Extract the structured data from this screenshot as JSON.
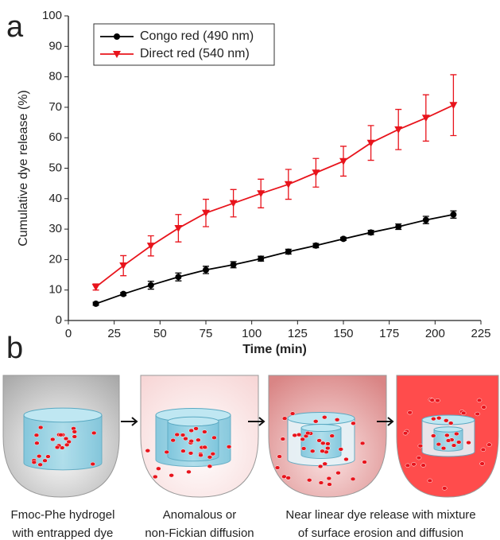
{
  "chart_data": {
    "type": "line",
    "xlabel": "Time (min)",
    "ylabel": "Cumulative dye release (%)",
    "x": [
      15,
      30,
      45,
      60,
      75,
      90,
      105,
      120,
      135,
      150,
      165,
      180,
      195,
      210
    ],
    "series": [
      {
        "name": "Congo red (490 nm)",
        "color": "#000000",
        "marker": "circle",
        "values": [
          5.5,
          8.7,
          11.6,
          14.3,
          16.6,
          18.3,
          20.3,
          22.6,
          24.6,
          26.8,
          28.9,
          30.8,
          33.0,
          34.8
        ],
        "errors": [
          0.5,
          0.5,
          1.3,
          1.3,
          1.2,
          1.0,
          0.8,
          0.8,
          0.7,
          0.5,
          0.7,
          0.9,
          1.2,
          1.2
        ]
      },
      {
        "name": "Direct red (540 nm)",
        "color": "#e8141c",
        "marker": "triangle-down",
        "values": [
          11.0,
          18.0,
          24.5,
          30.3,
          35.3,
          38.5,
          41.7,
          44.7,
          48.5,
          52.3,
          58.3,
          62.7,
          66.5,
          70.7
        ],
        "errors": [
          1.0,
          3.3,
          3.3,
          4.5,
          4.5,
          4.5,
          4.7,
          4.9,
          4.7,
          4.9,
          5.7,
          6.6,
          7.6,
          10.0
        ]
      }
    ],
    "xlim": [
      0,
      225
    ],
    "xticks": [
      0,
      25,
      50,
      75,
      100,
      125,
      150,
      175,
      200,
      225
    ],
    "ylim": [
      0,
      100
    ],
    "yticks": [
      0,
      10,
      20,
      30,
      40,
      50,
      60,
      70,
      80,
      90,
      100
    ],
    "legend": "upper-left"
  },
  "panel_labels": [
    "a",
    "b"
  ],
  "diagram": {
    "captions": [
      [
        "Fmoc-Phe hydrogel",
        "with entrapped dye"
      ],
      [
        "Anomalous or",
        "non-Fickian diffusion"
      ],
      [
        "Near linear dye release with mixture",
        "of surface erosion and diffusion"
      ]
    ]
  }
}
